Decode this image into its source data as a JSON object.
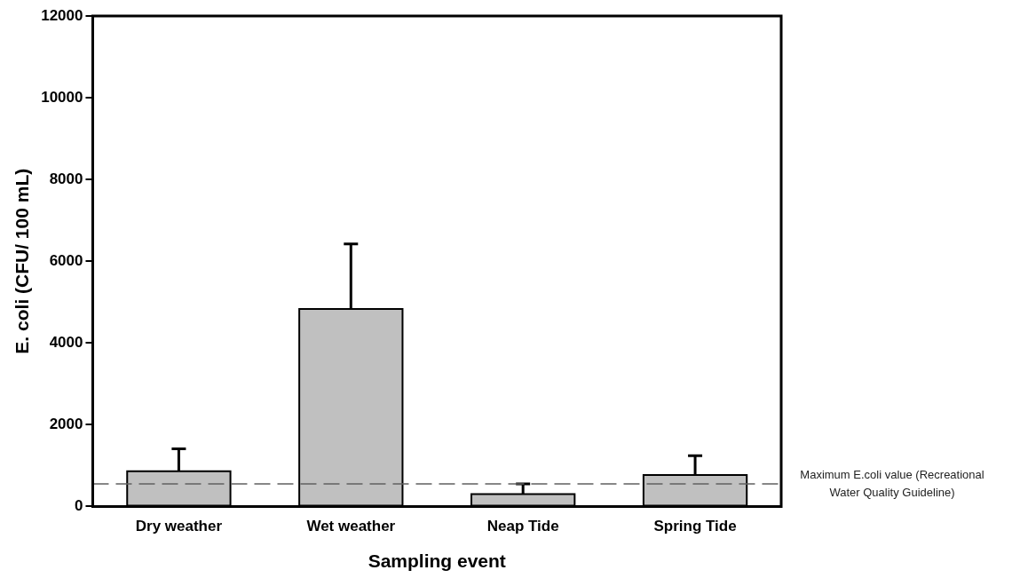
{
  "chart_data": {
    "type": "bar",
    "xlabel": "Sampling event",
    "ylabel": "E. coli (CFU/ 100 mL)",
    "categories": [
      "Dry weather",
      "Wet weather",
      "Neap Tide",
      "Spring Tide"
    ],
    "values": [
      860,
      4830,
      300,
      770
    ],
    "errors": [
      [
        860,
        1410
      ],
      [
        4830,
        6420
      ],
      [
        300,
        550
      ],
      [
        770,
        1240
      ]
    ],
    "color": "#c0c0c0",
    "ylim": [
      0,
      12000
    ],
    "yticks": [
      0,
      2000,
      4000,
      6000,
      8000,
      10000,
      12000
    ],
    "grid": false,
    "legend": false,
    "ref_lines": [
      {
        "axis": "y",
        "value": 550,
        "label": "Maximum E.coli value (Recreational Water Quality Guideline)",
        "color": "#606060",
        "line_style": "dashed"
      }
    ]
  }
}
